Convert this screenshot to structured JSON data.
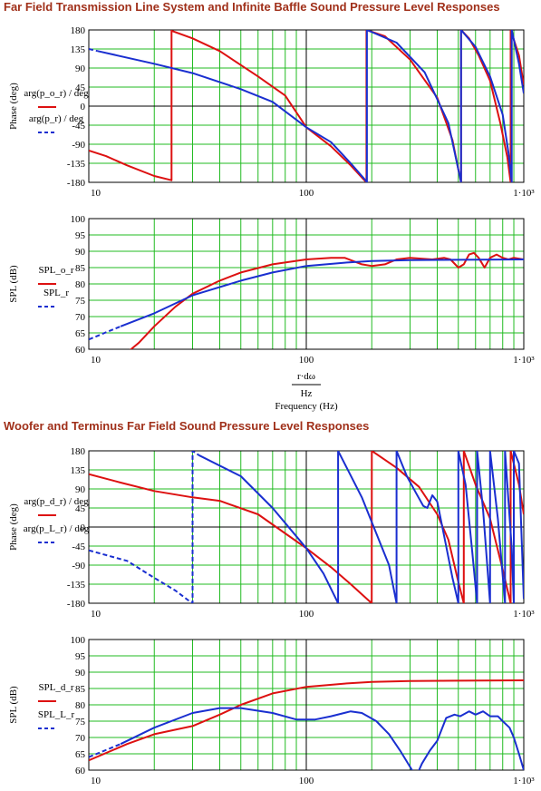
{
  "titles": {
    "top": "Far Field Transmission Line System and Infinite Baffle Sound Pressure Level Responses",
    "bottom": "Woofer and Terminus Far Field Sound Pressure Level Responses"
  },
  "xaxis": {
    "label_num": "r·dω",
    "label_den": "Hz",
    "caption": "Frequency (Hz)"
  },
  "colors": {
    "red": "#dd1111",
    "blue": "#1a2fd0",
    "grid": "#22bb22"
  },
  "chart_data": [
    {
      "type": "line",
      "xscale": "log",
      "xlim": [
        10,
        1000
      ],
      "ylim": [
        -180,
        180
      ],
      "yticks": [
        "180",
        "135",
        "90",
        "45",
        "0",
        "-45",
        "-90",
        "-135",
        "-180"
      ],
      "xticks": [
        "10",
        "100",
        "1·10³"
      ],
      "ylabel": "Phase (deg)",
      "legend": [
        "arg(p_o_r) / deg",
        "arg(p_r) / deg"
      ],
      "series": [
        {
          "color": "red",
          "dashed": false,
          "points": [
            [
              10,
              -105
            ],
            [
              12,
              -118
            ],
            [
              15,
              -140
            ],
            [
              20,
              -165
            ],
            [
              24,
              -175
            ],
            [
              24.01,
              178
            ],
            [
              30,
              160
            ],
            [
              40,
              130
            ],
            [
              60,
              70
            ],
            [
              80,
              25
            ],
            [
              100,
              -50
            ],
            [
              130,
              -95
            ],
            [
              160,
              -140
            ],
            [
              185,
              -175
            ],
            [
              189,
              -180
            ],
            [
              189.01,
              180
            ],
            [
              230,
              165
            ],
            [
              300,
              110
            ],
            [
              400,
              20
            ],
            [
              470,
              -80
            ],
            [
              500,
              -150
            ],
            [
              515,
              -180
            ],
            [
              515.01,
              180
            ],
            [
              560,
              160
            ],
            [
              620,
              120
            ],
            [
              700,
              60
            ],
            [
              780,
              -40
            ],
            [
              840,
              -120
            ],
            [
              870,
              -180
            ],
            [
              870.01,
              180
            ],
            [
              950,
              120
            ],
            [
              1000,
              50
            ]
          ]
        },
        {
          "color": "blue",
          "dashed": true,
          "points": [
            [
              10,
              135
            ],
            [
              11,
              130
            ]
          ]
        },
        {
          "color": "blue",
          "dashed": false,
          "points": [
            [
              11,
              130
            ],
            [
              20,
              100
            ],
            [
              30,
              78
            ],
            [
              50,
              40
            ],
            [
              70,
              10
            ],
            [
              100,
              -50
            ],
            [
              130,
              -85
            ],
            [
              160,
              -135
            ],
            [
              185,
              -172
            ],
            [
              190,
              -180
            ],
            [
              190.01,
              180
            ],
            [
              260,
              150
            ],
            [
              350,
              80
            ],
            [
              450,
              -40
            ],
            [
              510,
              -170
            ],
            [
              515,
              -180
            ],
            [
              515.01,
              180
            ],
            [
              600,
              140
            ],
            [
              700,
              70
            ],
            [
              800,
              -20
            ],
            [
              850,
              -110
            ],
            [
              880,
              -180
            ],
            [
              880.01,
              180
            ],
            [
              950,
              100
            ],
            [
              1000,
              30
            ]
          ]
        }
      ]
    },
    {
      "type": "line",
      "xscale": "log",
      "xlim": [
        10,
        1000
      ],
      "ylim": [
        60,
        100
      ],
      "yticks": [
        "100",
        "95",
        "90",
        "85",
        "80",
        "75",
        "70",
        "65",
        "60"
      ],
      "xticks": [
        "10",
        "100",
        "1·10³"
      ],
      "ylabel": "SPL (dB)",
      "legend": [
        "SPL_o_r",
        "SPL_r"
      ],
      "series": [
        {
          "color": "red",
          "dashed": false,
          "points": [
            [
              15,
              59
            ],
            [
              17,
              62
            ],
            [
              20,
              67
            ],
            [
              25,
              73
            ],
            [
              30,
              77
            ],
            [
              40,
              81
            ],
            [
              50,
              83.5
            ],
            [
              70,
              86
            ],
            [
              100,
              87.5
            ],
            [
              130,
              88
            ],
            [
              150,
              88
            ],
            [
              180,
              86
            ],
            [
              200,
              85.5
            ],
            [
              230,
              86
            ],
            [
              260,
              87.5
            ],
            [
              300,
              88
            ],
            [
              380,
              87.5
            ],
            [
              430,
              88
            ],
            [
              460,
              87.5
            ],
            [
              500,
              85
            ],
            [
              530,
              86
            ],
            [
              560,
              89
            ],
            [
              590,
              89.5
            ],
            [
              620,
              88
            ],
            [
              660,
              85
            ],
            [
              700,
              88
            ],
            [
              750,
              89
            ],
            [
              800,
              88
            ],
            [
              850,
              87.5
            ],
            [
              900,
              88
            ],
            [
              1000,
              87.5
            ]
          ]
        },
        {
          "color": "blue",
          "dashed": true,
          "points": [
            [
              10,
              63
            ],
            [
              14,
              67
            ]
          ]
        },
        {
          "color": "blue",
          "dashed": false,
          "points": [
            [
              14,
              67
            ],
            [
              20,
              71
            ],
            [
              30,
              76.5
            ],
            [
              50,
              81
            ],
            [
              70,
              83.5
            ],
            [
              100,
              85.5
            ],
            [
              150,
              86.5
            ],
            [
              200,
              87
            ],
            [
              300,
              87.3
            ],
            [
              500,
              87.4
            ],
            [
              1000,
              87.5
            ]
          ]
        }
      ]
    },
    {
      "type": "line",
      "xscale": "log",
      "xlim": [
        10,
        1000
      ],
      "ylim": [
        -180,
        180
      ],
      "yticks": [
        "180",
        "135",
        "90",
        "45",
        "0",
        "-45",
        "-90",
        "-135",
        "-180"
      ],
      "xticks": [
        "10",
        "100",
        "1·10³"
      ],
      "ylabel": "Phase (deg)",
      "legend": [
        "arg(p_d_r) / deg",
        "arg(p_L_r) / deg"
      ],
      "series": [
        {
          "color": "red",
          "dashed": false,
          "points": [
            [
              10,
              125
            ],
            [
              14,
              105
            ],
            [
              20,
              85
            ],
            [
              30,
              70
            ],
            [
              40,
              62
            ],
            [
              60,
              30
            ],
            [
              80,
              -15
            ],
            [
              100,
              -50
            ],
            [
              130,
              -95
            ],
            [
              160,
              -135
            ],
            [
              190,
              -170
            ],
            [
              200,
              -180
            ],
            [
              200.01,
              180
            ],
            [
              260,
              140
            ],
            [
              330,
              95
            ],
            [
              400,
              30
            ],
            [
              450,
              -30
            ],
            [
              500,
              -130
            ],
            [
              530,
              -180
            ],
            [
              530.01,
              180
            ],
            [
              600,
              100
            ],
            [
              700,
              20
            ],
            [
              800,
              -100
            ],
            [
              870,
              -180
            ],
            [
              870.01,
              180
            ],
            [
              950,
              100
            ],
            [
              1000,
              30
            ]
          ]
        },
        {
          "color": "blue",
          "dashed": true,
          "points": [
            [
              10,
              -55
            ],
            [
              15,
              -80
            ],
            [
              20,
              -120
            ],
            [
              25,
              -150
            ],
            [
              29,
              -175
            ],
            [
              30,
              -180
            ],
            [
              30.01,
              180
            ],
            [
              32,
              170
            ]
          ]
        },
        {
          "color": "blue",
          "dashed": false,
          "points": [
            [
              32,
              170
            ],
            [
              50,
              120
            ],
            [
              70,
              45
            ],
            [
              100,
              -50
            ],
            [
              120,
              -110
            ],
            [
              140,
              -180
            ],
            [
              140.01,
              180
            ],
            [
              180,
              70
            ],
            [
              240,
              -90
            ],
            [
              260,
              -180
            ],
            [
              260.01,
              180
            ],
            [
              290,
              120
            ],
            [
              320,
              80
            ],
            [
              345,
              50
            ],
            [
              360,
              45
            ],
            [
              380,
              75
            ],
            [
              400,
              60
            ],
            [
              430,
              -20
            ],
            [
              470,
              -120
            ],
            [
              500,
              -180
            ],
            [
              500.01,
              180
            ],
            [
              540,
              100
            ],
            [
              580,
              -60
            ],
            [
              610,
              -180
            ],
            [
              610.01,
              180
            ],
            [
              650,
              40
            ],
            [
              700,
              -180
            ],
            [
              700.01,
              180
            ],
            [
              760,
              20
            ],
            [
              820,
              -180
            ],
            [
              820.01,
              180
            ],
            [
              880,
              -50
            ],
            [
              900,
              -180
            ],
            [
              900.01,
              180
            ],
            [
              950,
              150
            ],
            [
              1000,
              -170
            ]
          ]
        }
      ]
    },
    {
      "type": "line",
      "xscale": "log",
      "xlim": [
        10,
        1000
      ],
      "ylim": [
        60,
        100
      ],
      "yticks": [
        "100",
        "95",
        "90",
        "85",
        "80",
        "75",
        "70",
        "65",
        "60"
      ],
      "xticks": [
        "10",
        "100",
        "1·10³"
      ],
      "ylabel": "SPL (dB)",
      "legend": [
        "SPL_d_r",
        "SPL_L_r"
      ],
      "series": [
        {
          "color": "red",
          "dashed": false,
          "points": [
            [
              10,
              63
            ],
            [
              15,
              68
            ],
            [
              20,
              71
            ],
            [
              30,
              73.5
            ],
            [
              40,
              77
            ],
            [
              50,
              80
            ],
            [
              70,
              83.5
            ],
            [
              100,
              85.5
            ],
            [
              150,
              86.5
            ],
            [
              200,
              87
            ],
            [
              300,
              87.3
            ],
            [
              500,
              87.4
            ],
            [
              1000,
              87.5
            ]
          ]
        },
        {
          "color": "blue",
          "dashed": true,
          "points": [
            [
              10,
              64
            ],
            [
              14,
              68
            ]
          ]
        },
        {
          "color": "blue",
          "dashed": false,
          "points": [
            [
              14,
              68
            ],
            [
              20,
              73
            ],
            [
              30,
              77.5
            ],
            [
              40,
              79
            ],
            [
              50,
              79
            ],
            [
              70,
              77.5
            ],
            [
              90,
              75.5
            ],
            [
              110,
              75.5
            ],
            [
              130,
              76.5
            ],
            [
              160,
              78
            ],
            [
              180,
              77.5
            ],
            [
              210,
              75
            ],
            [
              240,
              71
            ],
            [
              270,
              66
            ],
            [
              300,
              61
            ],
            [
              320,
              58
            ],
            [
              340,
              62
            ],
            [
              370,
              66
            ],
            [
              400,
              69
            ],
            [
              440,
              76
            ],
            [
              480,
              77
            ],
            [
              510,
              76.5
            ],
            [
              560,
              78
            ],
            [
              600,
              77
            ],
            [
              650,
              78
            ],
            [
              700,
              76.5
            ],
            [
              760,
              76.5
            ],
            [
              800,
              75
            ],
            [
              860,
              73
            ],
            [
              900,
              70
            ],
            [
              950,
              65
            ],
            [
              1000,
              60
            ]
          ]
        }
      ]
    }
  ]
}
